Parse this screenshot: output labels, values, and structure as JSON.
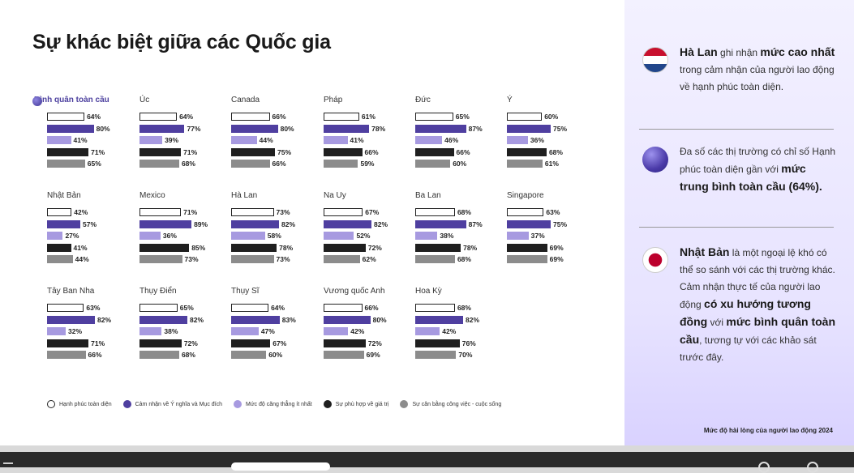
{
  "title": "Sự khác biệt giữa các Quốc gia",
  "chart_data": {
    "type": "bar",
    "orientation": "horizontal",
    "series_names": [
      "Hạnh phúc toàn diện",
      "Cảm nhận về Ý nghĩa và Mục đích",
      "Mức độ căng thẳng ít nhất",
      "Sự phù hợp về giá trị",
      "Sự cân bằng công việc - cuộc sống"
    ],
    "series_colors": [
      "#ffffff",
      "#4f3fa0",
      "#a79ae0",
      "#1f1f1f",
      "#8c8c8c"
    ],
    "countries": [
      {
        "name": "Bình quân toàn cầu",
        "values": [
          64,
          80,
          41,
          71,
          65
        ],
        "labels": [
          "64%",
          "80%",
          "41%",
          "71%",
          "65%"
        ]
      },
      {
        "name": "Úc",
        "values": [
          64,
          77,
          39,
          71,
          68
        ],
        "labels": [
          "64%",
          "77%",
          "39%",
          "71%",
          "68%"
        ]
      },
      {
        "name": "Canada",
        "values": [
          66,
          80,
          44,
          75,
          66
        ],
        "labels": [
          "66%",
          "80%",
          "44%",
          "75%",
          "66%"
        ]
      },
      {
        "name": "Pháp",
        "values": [
          61,
          78,
          41,
          66,
          59
        ],
        "labels": [
          "61%",
          "78%",
          "41%",
          "66%",
          "59%"
        ]
      },
      {
        "name": "Đức",
        "values": [
          65,
          87,
          46,
          66,
          60
        ],
        "labels": [
          "65%",
          "87%",
          "46%",
          "66%",
          "60%"
        ]
      },
      {
        "name": "Ý",
        "values": [
          60,
          75,
          36,
          68,
          61
        ],
        "labels": [
          "60%",
          "75%",
          "36%",
          "68%",
          "61%"
        ]
      },
      {
        "name": "Nhật Bản",
        "values": [
          42,
          57,
          27,
          41,
          44
        ],
        "labels": [
          "42%",
          "57%",
          "27%",
          "41%",
          "44%"
        ]
      },
      {
        "name": "Mexico",
        "values": [
          71,
          89,
          36,
          85,
          73
        ],
        "labels": [
          "71%",
          "89%",
          "36%",
          "85%",
          "73%"
        ]
      },
      {
        "name": "Hà Lan",
        "values": [
          73,
          82,
          58,
          78,
          73
        ],
        "labels": [
          "73%",
          "82%",
          "58%",
          "78%",
          "73%"
        ]
      },
      {
        "name": "Na Uy",
        "values": [
          67,
          82,
          52,
          72,
          62
        ],
        "labels": [
          "67%",
          "82%",
          "52%",
          "72%",
          "62%"
        ]
      },
      {
        "name": "Ba Lan",
        "values": [
          68,
          87,
          38,
          78,
          68
        ],
        "labels": [
          "68%",
          "87%",
          "38%",
          "78%",
          "68%"
        ]
      },
      {
        "name": "Singapore",
        "values": [
          63,
          75,
          37,
          69,
          69
        ],
        "labels": [
          "63%",
          "75%",
          "37%",
          "69%",
          "69%"
        ]
      },
      {
        "name": "Tây Ban Nha",
        "values": [
          63,
          82,
          32,
          71,
          66
        ],
        "labels": [
          "63%",
          "82%",
          "32%",
          "71%",
          "66%"
        ]
      },
      {
        "name": "Thụy Điển",
        "values": [
          65,
          82,
          38,
          72,
          68
        ],
        "labels": [
          "65%",
          "82%",
          "38%",
          "72%",
          "68%"
        ]
      },
      {
        "name": "Thụy Sĩ",
        "values": [
          64,
          83,
          47,
          67,
          60
        ],
        "labels": [
          "64%",
          "83%",
          "47%",
          "67%",
          "60%"
        ]
      },
      {
        "name": "Vương quốc Anh",
        "values": [
          66,
          80,
          42,
          72,
          69
        ],
        "labels": [
          "66%",
          "80%",
          "42%",
          "72%",
          "69%"
        ]
      },
      {
        "name": "Hoa Kỳ",
        "values": [
          68,
          82,
          42,
          76,
          70
        ],
        "labels": [
          "68%",
          "82%",
          "42%",
          "76%",
          "70%"
        ]
      }
    ]
  },
  "sidebar": {
    "card1": {
      "b1": "Hà Lan",
      "t1": " ghi nhận ",
      "b2": "mức cao nhất",
      "t2": " trong cảm nhận của người lao động về hạnh phúc toàn diện."
    },
    "card2": {
      "t1": "Đa số các thị trường có chỉ số Hạnh phúc toàn diện gần với ",
      "b1": "mức trung bình toàn cầu (64%)."
    },
    "card3": {
      "b1": "Nhật Bản",
      "t1": " là một ngoại lệ khó có thể so sánh với các thị trường khác. Cảm nhận thực tế của người lao động ",
      "b2": "có xu hướng tương đồng",
      "t2": " với ",
      "b3": "mức bình quân toàn cầu",
      "t3": ", tương tự với các khảo sát trước đây."
    },
    "footer": "Mức độ hài lòng của người lao động 2024"
  }
}
